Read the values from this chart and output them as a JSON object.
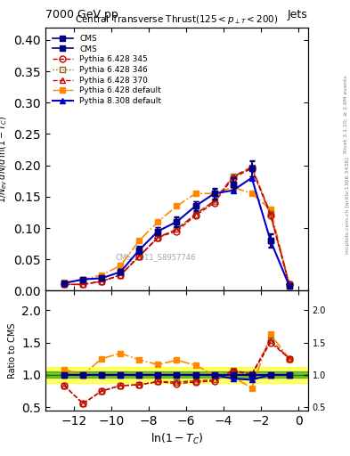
{
  "title_top": "7000 GeV pp",
  "title_right": "Jets",
  "plot_title": "Central Transverse Thrust(125 < p_{#jetT} < 200)",
  "xlabel": "ln(1-T_{C})",
  "ylabel_main": "1/N_{ev} dN/d_ln(1-T_{C})",
  "ylabel_ratio": "Ratio to CMS",
  "watermark": "CMS_2011_S8957746",
  "right_label": "Rivet 3.1.10; ≥ 2.6M events",
  "right_label2": "mcplots.cern.ch [arXiv:1306.3436]",
  "x_data": [
    -12.5,
    -11.5,
    -10.5,
    -9.5,
    -8.5,
    -7.5,
    -6.5,
    -5.5,
    -4.5,
    -3.5,
    -2.5,
    -1.5,
    -0.5
  ],
  "cms1_y": [
    0.012,
    0.018,
    0.02,
    0.03,
    0.065,
    0.095,
    0.11,
    0.135,
    0.155,
    0.17,
    0.195,
    0.08,
    0.008
  ],
  "cms1_yerr": [
    0.002,
    0.002,
    0.002,
    0.003,
    0.005,
    0.006,
    0.007,
    0.007,
    0.008,
    0.01,
    0.012,
    0.01,
    0.002
  ],
  "cms2_y": [
    0.012,
    0.018,
    0.02,
    0.03,
    0.065,
    0.095,
    0.11,
    0.135,
    0.155,
    0.17,
    0.195,
    0.08,
    0.008
  ],
  "cms2_yerr": [
    0.003,
    0.003,
    0.003,
    0.004,
    0.006,
    0.007,
    0.008,
    0.008,
    0.009,
    0.011,
    0.013,
    0.011,
    0.003
  ],
  "py6_345_y": [
    0.01,
    0.01,
    0.015,
    0.025,
    0.055,
    0.085,
    0.095,
    0.12,
    0.14,
    0.18,
    0.195,
    0.12,
    0.01
  ],
  "py6_346_y": [
    0.01,
    0.01,
    0.015,
    0.025,
    0.055,
    0.085,
    0.098,
    0.122,
    0.143,
    0.182,
    0.197,
    0.123,
    0.01
  ],
  "py6_370_y": [
    0.01,
    0.01,
    0.015,
    0.025,
    0.055,
    0.085,
    0.098,
    0.122,
    0.143,
    0.182,
    0.197,
    0.123,
    0.01
  ],
  "py6_def_y": [
    0.013,
    0.018,
    0.025,
    0.04,
    0.08,
    0.11,
    0.135,
    0.155,
    0.155,
    0.165,
    0.155,
    0.13,
    0.01
  ],
  "py8_def_y": [
    0.012,
    0.018,
    0.02,
    0.03,
    0.065,
    0.095,
    0.11,
    0.135,
    0.155,
    0.16,
    0.18,
    0.08,
    0.008
  ],
  "ratio_cms_band_green": 0.05,
  "ratio_cms_band_yellow": 0.12,
  "color_cms1": "#000080",
  "color_cms2": "#000080",
  "color_py6_345": "#cc0000",
  "color_py6_346": "#8b6914",
  "color_py6_370": "#cc0000",
  "color_py6_def": "#ff8800",
  "color_py8_def": "#0000cc",
  "xlim": [
    -13.5,
    0.5
  ],
  "ylim_main": [
    0.0,
    0.42
  ],
  "ylim_ratio": [
    0.45,
    2.3
  ],
  "xticks": [
    -12,
    -10,
    -8,
    -6,
    -4,
    -2,
    0
  ]
}
